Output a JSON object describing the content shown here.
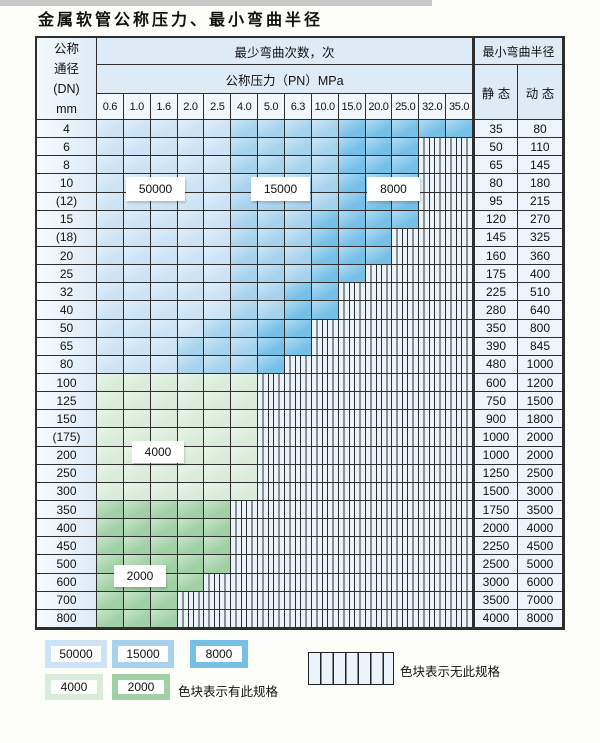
{
  "title": "金属软管公称压力、最小弯曲半径",
  "colors": {
    "c50000": "#cbe3f5",
    "c15000": "#a6d2ee",
    "c8000": "#76c0e8",
    "c4000": "#d9ecd9",
    "c2000": "#a0d0a4",
    "hatchbg": "#eaf2fa",
    "grid": "#2e2e2e",
    "headbg": "#ddebf7",
    "valbg": "#edf4fb"
  },
  "table": {
    "header": {
      "dn_label_lines": [
        "公称",
        "通径",
        "(DN)",
        "mm"
      ],
      "cycles_label": "最少弯曲次数，次",
      "radius_label": "最小弯曲半径",
      "pressure_label": "公称压力（PN）MPa",
      "static_label": "静 态",
      "dynamic_label": "动 态",
      "pressures": [
        "0.6",
        "1.0",
        "1.6",
        "2.0",
        "2.5",
        "4.0",
        "5.0",
        "6.3",
        "10.0",
        "15.0",
        "20.0",
        "25.0",
        "32.0",
        "35.0"
      ]
    },
    "zone_legend_note": "cells: 1=50000次 2=15000次 3=8000次 4=4000次 5=2000次 .=无此规格",
    "rows": [
      {
        "dn": "4",
        "cells": "11111222233333",
        "static": "35",
        "dynamic": "80"
      },
      {
        "dn": "6",
        "cells": "111112222333..",
        "static": "50",
        "dynamic": "110"
      },
      {
        "dn": "8",
        "cells": "111112222333..",
        "static": "65",
        "dynamic": "145"
      },
      {
        "dn": "10",
        "cells": "111112222333..",
        "static": "80",
        "dynamic": "180"
      },
      {
        "dn": "(12)",
        "cells": "111112222333..",
        "static": "95",
        "dynamic": "215"
      },
      {
        "dn": "15",
        "cells": "111112223333..",
        "static": "120",
        "dynamic": "270"
      },
      {
        "dn": "(18)",
        "cells": "11111222333...",
        "static": "145",
        "dynamic": "325"
      },
      {
        "dn": "20",
        "cells": "11111222333...",
        "static": "160",
        "dynamic": "360"
      },
      {
        "dn": "25",
        "cells": "1111122233....",
        "static": "175",
        "dynamic": "400"
      },
      {
        "dn": "32",
        "cells": "111112233.....",
        "static": "225",
        "dynamic": "510"
      },
      {
        "dn": "40",
        "cells": "111112233.....",
        "static": "280",
        "dynamic": "640"
      },
      {
        "dn": "50",
        "cells": "11112233......",
        "static": "350",
        "dynamic": "800"
      },
      {
        "dn": "65",
        "cells": "11122233......",
        "static": "390",
        "dynamic": "845"
      },
      {
        "dn": "80",
        "cells": "1112223.......",
        "static": "480",
        "dynamic": "1000"
      },
      {
        "dn": "100",
        "cells": "444444........",
        "static": "600",
        "dynamic": "1200"
      },
      {
        "dn": "125",
        "cells": "444444........",
        "static": "750",
        "dynamic": "1500"
      },
      {
        "dn": "150",
        "cells": "444444........",
        "static": "900",
        "dynamic": "1800"
      },
      {
        "dn": "(175)",
        "cells": "444444........",
        "static": "1000",
        "dynamic": "2000"
      },
      {
        "dn": "200",
        "cells": "444444........",
        "static": "1000",
        "dynamic": "2000"
      },
      {
        "dn": "250",
        "cells": "444444........",
        "static": "1250",
        "dynamic": "2500"
      },
      {
        "dn": "300",
        "cells": "444444........",
        "static": "1500",
        "dynamic": "3000"
      },
      {
        "dn": "350",
        "cells": "55555.........",
        "static": "1750",
        "dynamic": "3500"
      },
      {
        "dn": "400",
        "cells": "55555.........",
        "static": "2000",
        "dynamic": "4000"
      },
      {
        "dn": "450",
        "cells": "55555.........",
        "static": "2250",
        "dynamic": "4500"
      },
      {
        "dn": "500",
        "cells": "55555.........",
        "static": "2500",
        "dynamic": "5000"
      },
      {
        "dn": "600",
        "cells": "5555..........",
        "static": "3000",
        "dynamic": "6000"
      },
      {
        "dn": "700",
        "cells": "555...........",
        "static": "3500",
        "dynamic": "7000"
      },
      {
        "dn": "800",
        "cells": "555...........",
        "static": "4000",
        "dynamic": "8000"
      }
    ]
  },
  "zone_labels": {
    "b50000": "50000",
    "b15000": "15000",
    "b8000": "8000",
    "g4000": "4000",
    "g2000": "2000"
  },
  "legend": {
    "items": [
      {
        "label": "50000"
      },
      {
        "label": "15000"
      },
      {
        "label": "8000"
      },
      {
        "label": "4000"
      },
      {
        "label": "2000"
      }
    ],
    "has_spec_text": "色块表示有此规格",
    "no_spec_text": "色块表示无此规格"
  }
}
